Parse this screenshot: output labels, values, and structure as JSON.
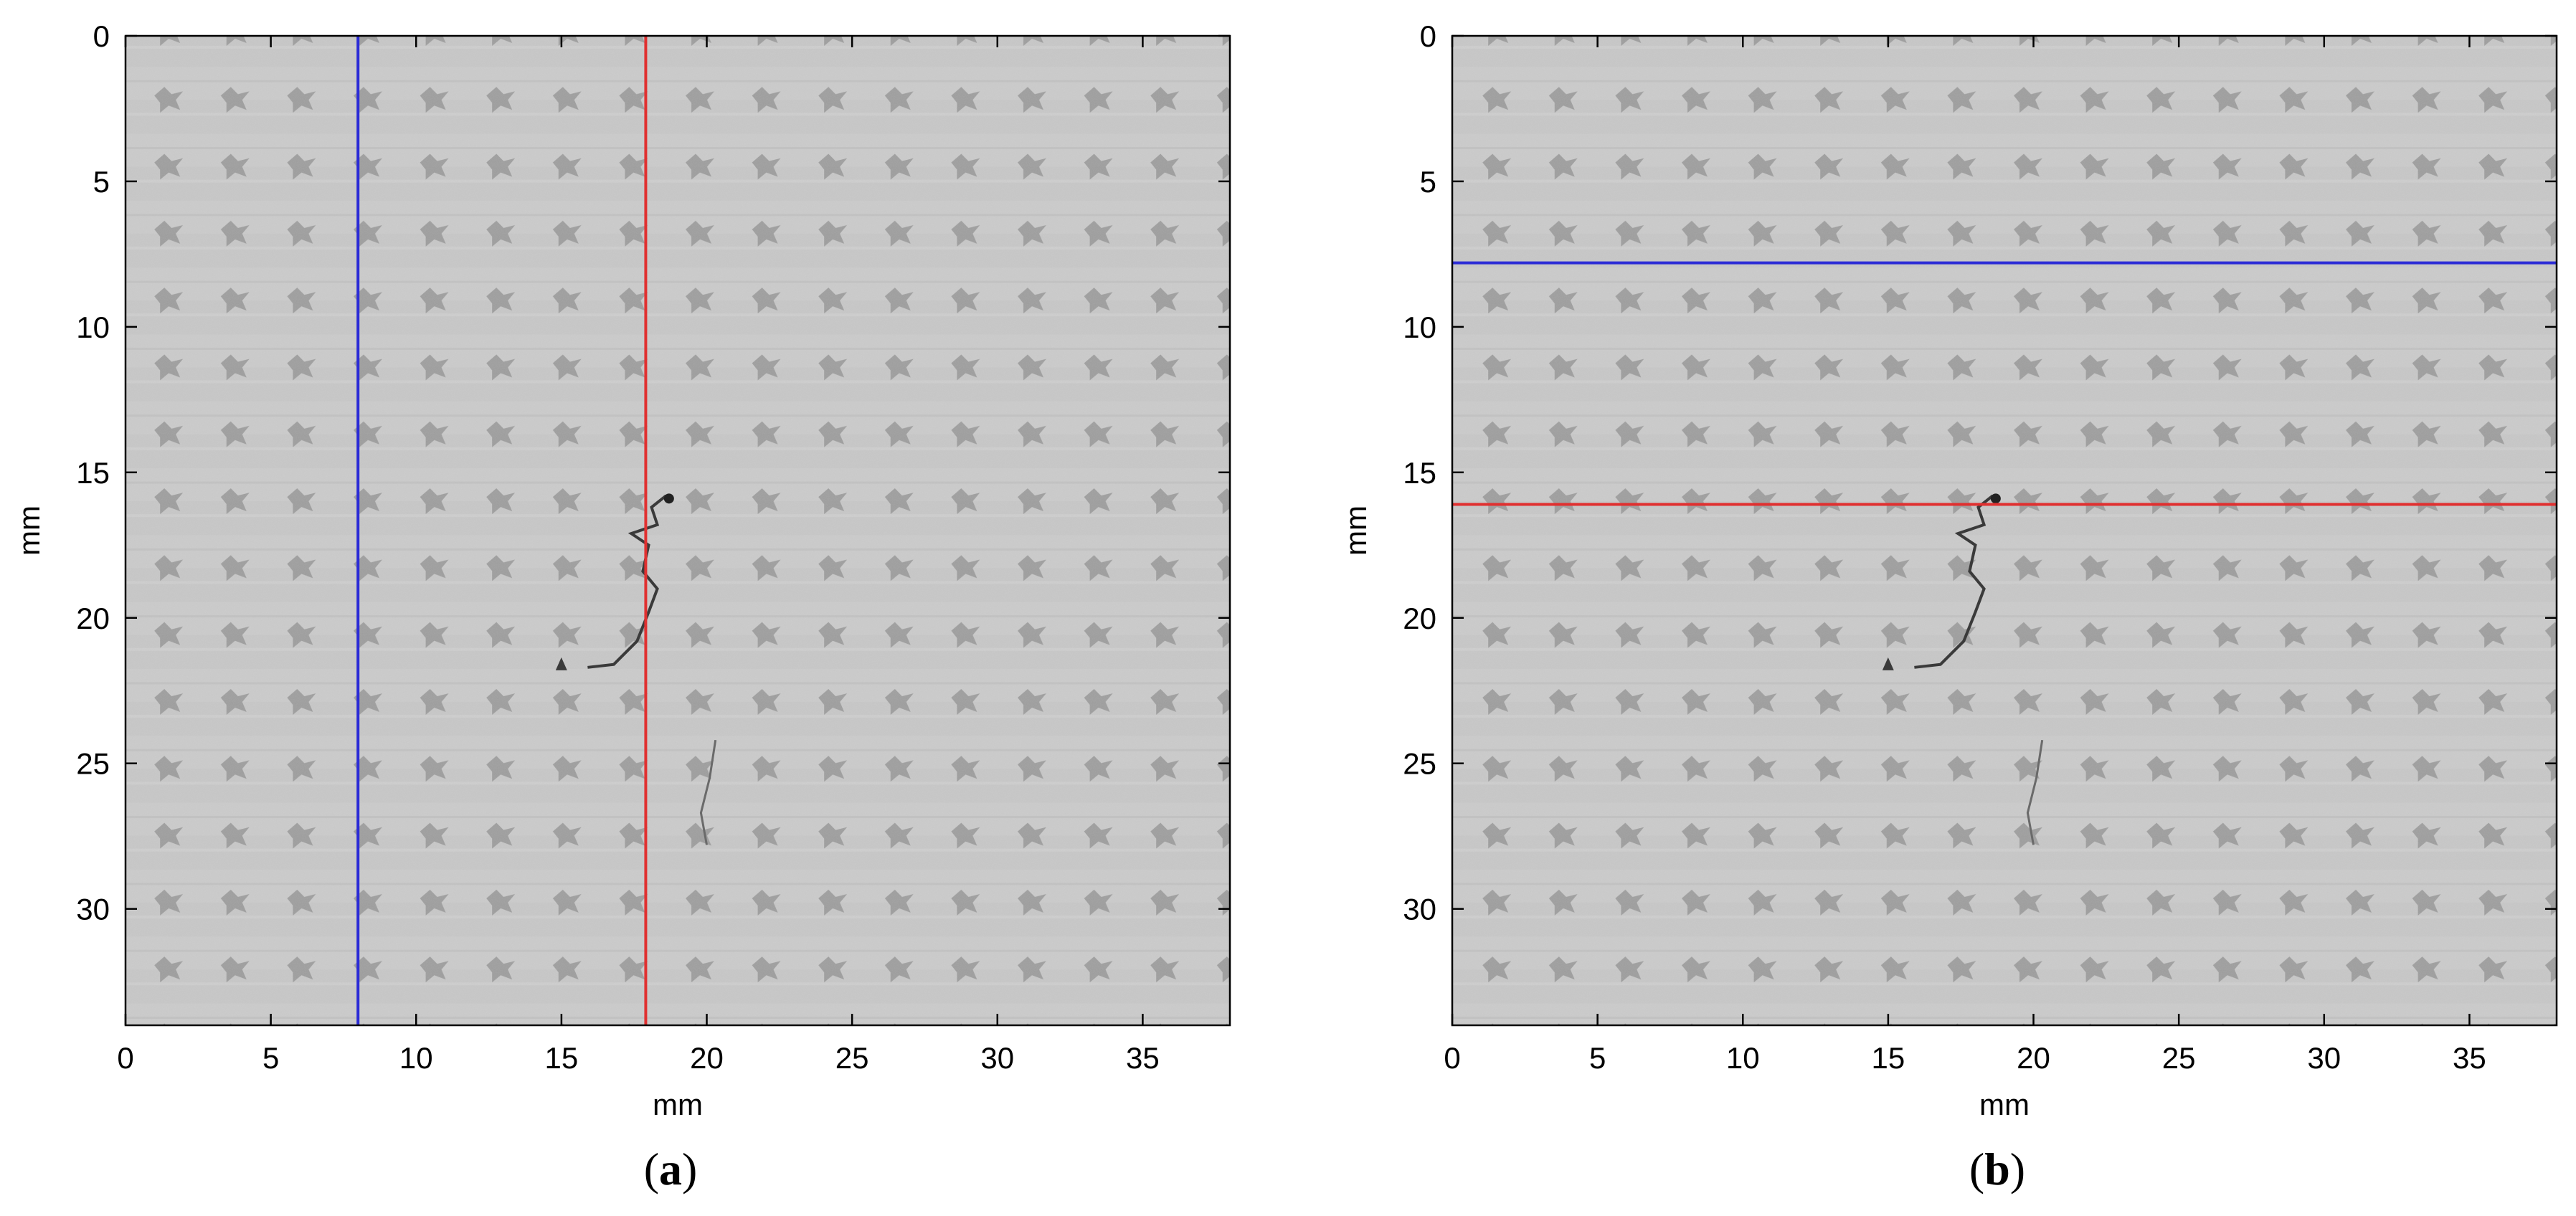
{
  "colors": {
    "image_bg": "#c8c8c8",
    "weave_mark": "#8a8a8a",
    "crack": "#3a3a3a"
  },
  "chart_data": [
    {
      "type": "image",
      "panel": "(a)",
      "panel_letter": "a",
      "xlabel": "mm",
      "ylabel": "mm",
      "xlim": [
        0,
        38
      ],
      "ylim": [
        34,
        0
      ],
      "xticks": [
        0,
        5,
        10,
        15,
        20,
        25,
        30,
        35
      ],
      "yticks": [
        0,
        5,
        10,
        15,
        20,
        25,
        30
      ],
      "lines": [
        {
          "orientation": "vertical",
          "x": 8,
          "color": "#2b2bd6"
        },
        {
          "orientation": "vertical",
          "x": 17.9,
          "color": "#e03030"
        }
      ]
    },
    {
      "type": "image",
      "panel": "(b)",
      "panel_letter": "b",
      "xlabel": "mm",
      "ylabel": "mm",
      "xlim": [
        0,
        38
      ],
      "ylim": [
        34,
        0
      ],
      "xticks": [
        0,
        5,
        10,
        15,
        20,
        25,
        30,
        35
      ],
      "yticks": [
        0,
        5,
        10,
        15,
        20,
        25,
        30
      ],
      "lines": [
        {
          "orientation": "horizontal",
          "y": 7.8,
          "color": "#2b2bd6"
        },
        {
          "orientation": "horizontal",
          "y": 16.1,
          "color": "#e03030"
        }
      ]
    }
  ]
}
